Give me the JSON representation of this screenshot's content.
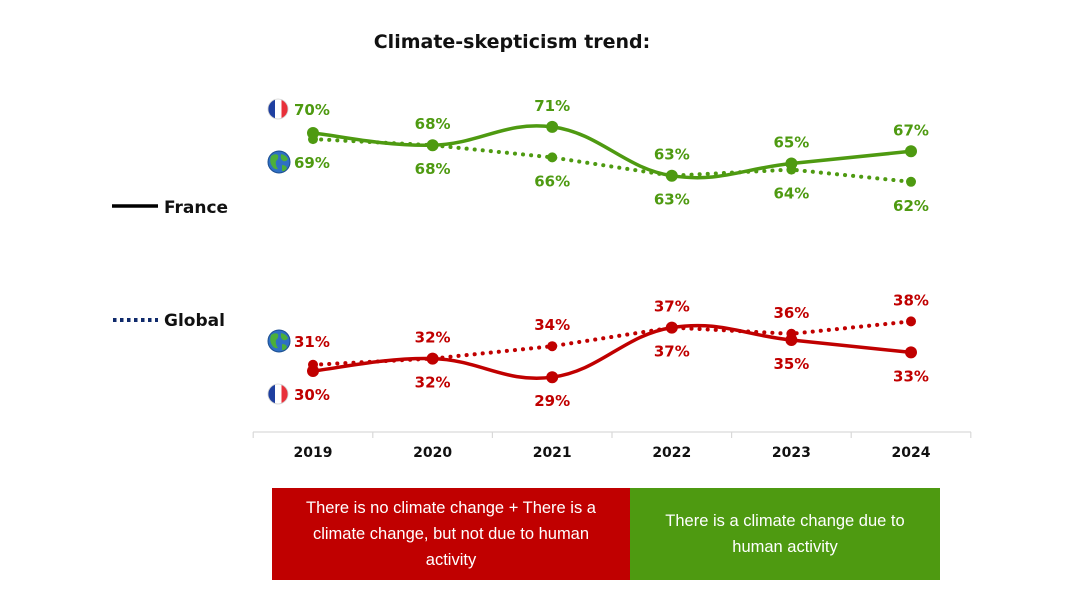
{
  "chart_data": {
    "type": "line",
    "title": "Climate-skepticism trend:",
    "xlabel": "",
    "ylabel": "",
    "categories": [
      "2019",
      "2020",
      "2021",
      "2022",
      "2023",
      "2024"
    ],
    "legend": [
      {
        "name": "France",
        "style": "solid",
        "color": "#000000",
        "placement": "left"
      },
      {
        "name": "Global",
        "style": "dotted",
        "color": "#0f2a6b",
        "placement": "left"
      }
    ],
    "groups": [
      {
        "name": "There is a climate change due to human activity",
        "color": "#4e9a11",
        "ylim": [
          55,
          75
        ],
        "series": [
          {
            "name": "France",
            "style": "solid",
            "icon": "france-flag-icon",
            "values": [
              70,
              68,
              71,
              63,
              65,
              67
            ],
            "labels": [
              "70%",
              "68%",
              "71%",
              "63%",
              "65%",
              "67%"
            ]
          },
          {
            "name": "Global",
            "style": "dotted",
            "icon": "globe-icon",
            "values": [
              69,
              68,
              66,
              63,
              64,
              62
            ],
            "labels": [
              "69%",
              "68%",
              "66%",
              "63%",
              "64%",
              "62%"
            ]
          }
        ]
      },
      {
        "name": "There is no climate change + There is a climate change, but not due to human activity",
        "color": "#c00000",
        "ylim": [
          25,
          45
        ],
        "series": [
          {
            "name": "France",
            "style": "solid",
            "icon": "france-flag-icon",
            "values": [
              30,
              32,
              29,
              37,
              35,
              33
            ],
            "labels": [
              "30%",
              "32%",
              "29%",
              "37%",
              "35%",
              "33%"
            ]
          },
          {
            "name": "Global",
            "style": "dotted",
            "icon": "globe-icon",
            "values": [
              31,
              32,
              34,
              37,
              36,
              38
            ],
            "labels": [
              "31%",
              "32%",
              "34%",
              "37%",
              "36%",
              "38%"
            ]
          }
        ]
      }
    ]
  },
  "category_boxes": {
    "red_label": "There is no climate change + There is a climate change, but not due to human activity",
    "green_label": "There is a climate change due to human activity"
  }
}
